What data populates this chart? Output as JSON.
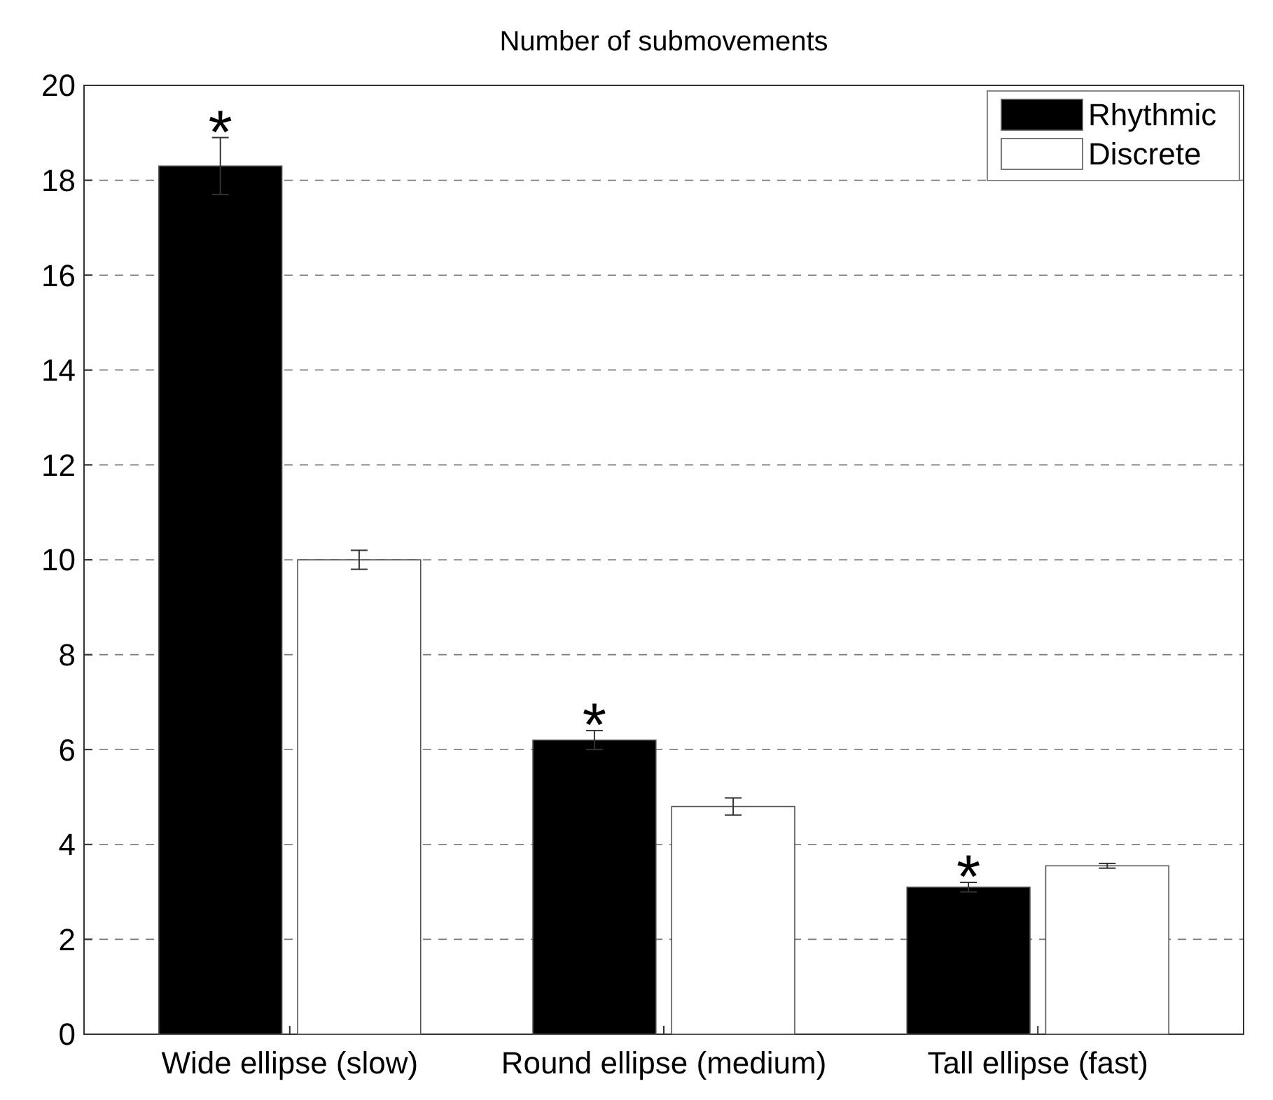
{
  "chart_data": {
    "type": "bar",
    "title": "Number of submovements",
    "categories": [
      "Wide ellipse (slow)",
      "Round ellipse (medium)",
      "Tall ellipse (fast)"
    ],
    "series": [
      {
        "name": "Rhythmic",
        "color": "#000000",
        "values": [
          18.3,
          6.2,
          3.1
        ],
        "errors": [
          0.6,
          0.2,
          0.1
        ]
      },
      {
        "name": "Discrete",
        "color": "#ffffff",
        "values": [
          10.0,
          4.8,
          3.55
        ],
        "errors": [
          0.2,
          0.18,
          0.05
        ]
      }
    ],
    "ylim": [
      0,
      20
    ],
    "yticks": [
      0,
      2,
      4,
      6,
      8,
      10,
      12,
      14,
      16,
      18,
      20
    ],
    "grid": "y",
    "legend": "top right",
    "annotations": [
      "*",
      "*",
      "*"
    ]
  }
}
